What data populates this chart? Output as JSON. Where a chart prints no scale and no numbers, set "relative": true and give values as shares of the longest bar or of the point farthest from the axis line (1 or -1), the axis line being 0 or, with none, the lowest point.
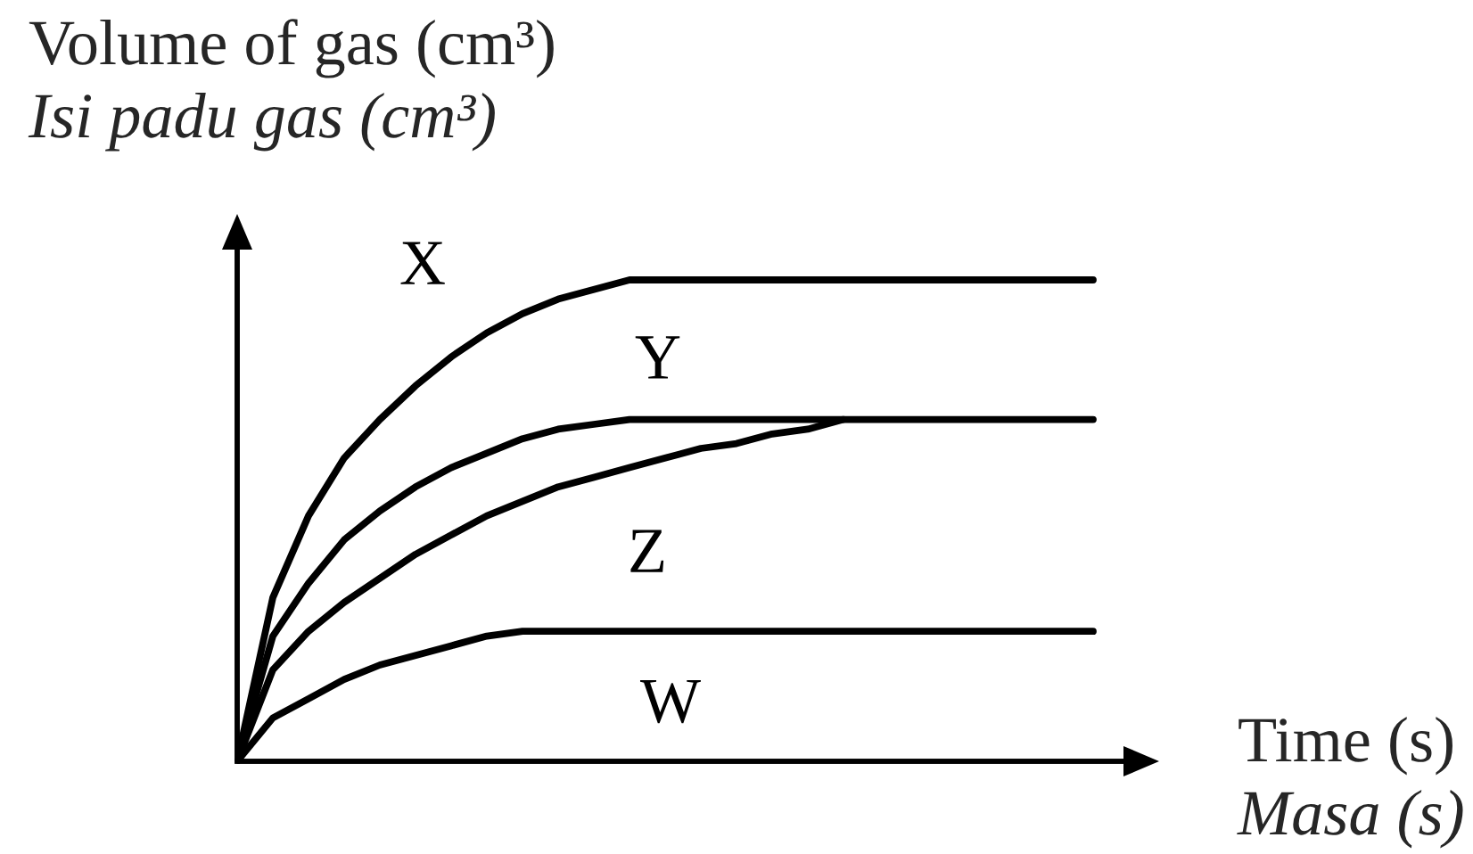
{
  "chart_data": {
    "type": "line",
    "relative": true,
    "xlabel": "Time (s)\nMasa (s)",
    "ylabel": "Volume of gas (cm³)\nIsi padu gas (cm³)",
    "categories": [
      null,
      null,
      null,
      null,
      null,
      null,
      null,
      null,
      null,
      null,
      null,
      null,
      null,
      null,
      null,
      null,
      null,
      null,
      null,
      null,
      null,
      null,
      null,
      null,
      null
    ],
    "series": [
      {
        "name": "X",
        "color": "#000000",
        "values": [
          0,
          0.34,
          0.51,
          0.63,
          0.71,
          0.78,
          0.84,
          0.89,
          0.93,
          0.96,
          0.98,
          1,
          1,
          1,
          1,
          1,
          1,
          1,
          1,
          1,
          1,
          1,
          1,
          1,
          1
        ]
      },
      {
        "name": "Y",
        "color": "#000000",
        "values": [
          0,
          0.26,
          0.37,
          0.46,
          0.52,
          0.57,
          0.61,
          0.64,
          0.67,
          0.69,
          0.7,
          0.71,
          0.71,
          0.71,
          0.71,
          0.71,
          0.71,
          0.71,
          0.71,
          0.71,
          0.71,
          0.71,
          0.71,
          0.71,
          0.71
        ]
      },
      {
        "name": "Z",
        "color": "#000000",
        "values": [
          0,
          0.19,
          0.27,
          0.33,
          0.38,
          0.43,
          0.47,
          0.51,
          0.54,
          0.57,
          0.59,
          0.61,
          0.63,
          0.65,
          0.66,
          0.68,
          0.69,
          0.71,
          null,
          null,
          null,
          null,
          null,
          null,
          null
        ]
      },
      {
        "name": "W",
        "color": "#000000",
        "values": [
          0,
          0.09,
          0.13,
          0.17,
          0.2,
          0.22,
          0.24,
          0.26,
          0.27,
          0.27,
          0.27,
          0.27,
          0.27,
          0.27,
          0.27,
          0.27,
          0.27,
          0.27,
          0.27,
          0.27,
          0.27,
          0.27,
          0.27,
          0.27,
          0.27
        ]
      }
    ]
  }
}
